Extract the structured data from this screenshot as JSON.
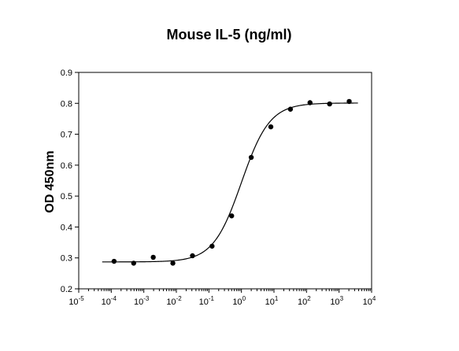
{
  "chart_data": {
    "type": "scatter",
    "title": "Mouse IL-5 (ng/ml)",
    "xlabel": "",
    "ylabel": "OD 450nm",
    "xscale": "log",
    "xlim": [
      1e-05,
      10000
    ],
    "ylim": [
      0.2,
      0.9
    ],
    "xticks": [
      {
        "value": 1e-05,
        "base": "10",
        "exp": "-5"
      },
      {
        "value": 0.0001,
        "base": "10",
        "exp": "-4"
      },
      {
        "value": 0.001,
        "base": "10",
        "exp": "-3"
      },
      {
        "value": 0.01,
        "base": "10",
        "exp": "-2"
      },
      {
        "value": 0.1,
        "base": "10",
        "exp": "-1"
      },
      {
        "value": 1,
        "base": "10",
        "exp": "0"
      },
      {
        "value": 10,
        "base": "10",
        "exp": "1"
      },
      {
        "value": 100,
        "base": "10",
        "exp": "2"
      },
      {
        "value": 1000,
        "base": "10",
        "exp": "3"
      },
      {
        "value": 10000,
        "base": "10",
        "exp": "4"
      }
    ],
    "yticks": [
      {
        "value": 0.2,
        "label": "0.2"
      },
      {
        "value": 0.3,
        "label": "0.3"
      },
      {
        "value": 0.4,
        "label": "0.4"
      },
      {
        "value": 0.5,
        "label": "0.5"
      },
      {
        "value": 0.6,
        "label": "0.6"
      },
      {
        "value": 0.7,
        "label": "0.7"
      },
      {
        "value": 0.8,
        "label": "0.8"
      },
      {
        "value": 0.9,
        "label": "0.9"
      }
    ],
    "grid": false,
    "legend": "none",
    "series": [
      {
        "points": [
          {
            "x": 0.000122,
            "y": 0.289
          },
          {
            "x": 0.000488,
            "y": 0.283
          },
          {
            "x": 0.00195,
            "y": 0.302
          },
          {
            "x": 0.00781,
            "y": 0.283
          },
          {
            "x": 0.0313,
            "y": 0.307
          },
          {
            "x": 0.125,
            "y": 0.338
          },
          {
            "x": 0.5,
            "y": 0.436
          },
          {
            "x": 2,
            "y": 0.625
          },
          {
            "x": 8,
            "y": 0.724
          },
          {
            "x": 32,
            "y": 0.781
          },
          {
            "x": 128,
            "y": 0.802
          },
          {
            "x": 512,
            "y": 0.798
          },
          {
            "x": 2048,
            "y": 0.806
          }
        ],
        "fit": {
          "model": "4PL",
          "bottom": 0.287,
          "top": 0.801,
          "ec50": 1.0,
          "hill": 1.0
        },
        "marker_color": "#000000",
        "line_color": "#000000"
      }
    ]
  }
}
